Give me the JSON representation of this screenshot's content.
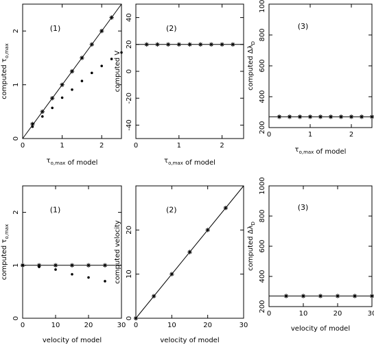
{
  "chart_data": [
    {
      "type": "scatter",
      "panel_label": "(1)",
      "xlabel": "τo,max of model",
      "ylabel": "computed τo,max",
      "xlim": [
        0,
        2.5
      ],
      "ylim": [
        0,
        2.5
      ],
      "xticks": [
        0,
        1,
        2
      ],
      "yticks": [
        0,
        1,
        2
      ],
      "reference_line": [
        [
          0,
          0
        ],
        [
          2.5,
          2.5
        ]
      ],
      "series": [
        {
          "marker": "star",
          "x": [
            0.25,
            0.5,
            0.75,
            1.0,
            1.25,
            1.5,
            1.75,
            2.0,
            2.25
          ],
          "y": [
            0.27,
            0.5,
            0.75,
            1.0,
            1.25,
            1.5,
            1.75,
            2.0,
            2.25
          ]
        },
        {
          "marker": "dot",
          "x": [
            0.25,
            0.5,
            0.75,
            1.0,
            1.25,
            1.5,
            1.75,
            2.0,
            2.25,
            2.5
          ],
          "y": [
            0.22,
            0.41,
            0.57,
            0.76,
            0.91,
            1.07,
            1.22,
            1.35,
            1.48,
            1.6
          ]
        }
      ]
    },
    {
      "type": "scatter",
      "panel_label": "(2)",
      "xlabel": "τo,max of model",
      "ylabel": "computed V",
      "xlim": [
        0,
        2.5
      ],
      "ylim": [
        -50,
        50
      ],
      "xticks": [
        0,
        1,
        2
      ],
      "yticks": [
        -40,
        -20,
        0,
        20,
        40
      ],
      "reference_line": [
        [
          0,
          20
        ],
        [
          2.5,
          20
        ]
      ],
      "series": [
        {
          "marker": "star",
          "x": [
            0.25,
            0.5,
            0.75,
            1.0,
            1.25,
            1.5,
            1.75,
            2.0,
            2.25
          ],
          "y": [
            20,
            20,
            20,
            20,
            20,
            20,
            20,
            20,
            20
          ]
        }
      ]
    },
    {
      "type": "scatter",
      "panel_label": "(3)",
      "xlabel": "τo,max of model",
      "ylabel": "computed ΔλD",
      "xlim": [
        0,
        2.5
      ],
      "ylim": [
        200,
        1000
      ],
      "xticks": [
        0,
        1,
        2
      ],
      "yticks": [
        200,
        400,
        600,
        800,
        1000
      ],
      "reference_line": [
        [
          0,
          270
        ],
        [
          2.5,
          270
        ]
      ],
      "series": [
        {
          "marker": "star",
          "x": [
            0.25,
            0.5,
            0.75,
            1.0,
            1.25,
            1.5,
            1.75,
            2.0,
            2.25,
            2.5
          ],
          "y": [
            270,
            270,
            270,
            270,
            270,
            270,
            270,
            270,
            270,
            270
          ]
        }
      ]
    },
    {
      "type": "scatter",
      "panel_label": "(1)",
      "xlabel": "velocity of model",
      "ylabel": "computed τo,max",
      "xlim": [
        0,
        30
      ],
      "ylim": [
        0,
        2.5
      ],
      "xticks": [
        0,
        10,
        20,
        30
      ],
      "yticks": [
        0,
        1,
        2
      ],
      "reference_line": [
        [
          0,
          1
        ],
        [
          30,
          1
        ]
      ],
      "series": [
        {
          "marker": "star",
          "x": [
            0,
            5,
            10,
            15,
            20,
            25
          ],
          "y": [
            1.0,
            1.0,
            1.0,
            1.0,
            1.0,
            1.0
          ]
        },
        {
          "marker": "dot",
          "x": [
            0,
            5,
            10,
            15,
            20,
            25
          ],
          "y": [
            1.0,
            0.97,
            0.92,
            0.83,
            0.77,
            0.7
          ]
        }
      ]
    },
    {
      "type": "scatter",
      "panel_label": "(2)",
      "xlabel": "velocity of model",
      "ylabel": "computed velocity",
      "xlim": [
        0,
        30
      ],
      "ylim": [
        0,
        30
      ],
      "xticks": [
        0,
        10,
        20,
        30
      ],
      "yticks": [
        0,
        10,
        20
      ],
      "reference_line": [
        [
          0,
          0
        ],
        [
          30,
          30
        ]
      ],
      "series": [
        {
          "marker": "star",
          "x": [
            0,
            5,
            10,
            15,
            20,
            25
          ],
          "y": [
            0,
            5,
            10,
            15,
            20,
            25
          ]
        }
      ]
    },
    {
      "type": "scatter",
      "panel_label": "(3)",
      "xlabel": "velocity of model",
      "ylabel": "computed ΔλD",
      "xlim": [
        0,
        30
      ],
      "ylim": [
        200,
        1000
      ],
      "xticks": [
        0,
        10,
        20,
        30
      ],
      "yticks": [
        200,
        400,
        600,
        800,
        1000
      ],
      "reference_line": [
        [
          0,
          270
        ],
        [
          30,
          270
        ]
      ],
      "series": [
        {
          "marker": "star",
          "x": [
            5,
            10,
            15,
            20,
            25,
            30
          ],
          "y": [
            270,
            270,
            270,
            270,
            270,
            270
          ]
        }
      ]
    }
  ]
}
